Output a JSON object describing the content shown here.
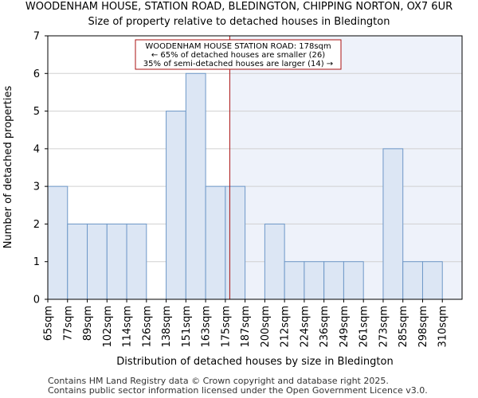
{
  "chart_data": {
    "type": "bar",
    "title": "WOODENHAM HOUSE, STATION ROAD, BLEDINGTON, CHIPPING NORTON, OX7 6UR",
    "subtitle": "Size of property relative to detached houses in Bledington",
    "xlabel": "Distribution of detached houses by size in Bledington",
    "ylabel": "Number of detached properties",
    "categories": [
      "65sqm",
      "77sqm",
      "89sqm",
      "102sqm",
      "114sqm",
      "126sqm",
      "138sqm",
      "151sqm",
      "163sqm",
      "175sqm",
      "187sqm",
      "200sqm",
      "212sqm",
      "224sqm",
      "236sqm",
      "249sqm",
      "261sqm",
      "273sqm",
      "285sqm",
      "298sqm",
      "310sqm"
    ],
    "values": [
      3,
      2,
      2,
      2,
      2,
      0,
      5,
      6,
      3,
      3,
      0,
      2,
      1,
      1,
      1,
      1,
      0,
      4,
      1,
      1,
      0
    ],
    "ylim": [
      0,
      7
    ],
    "yticks": [
      0,
      1,
      2,
      3,
      4,
      5,
      6,
      7
    ],
    "marker_value": 178,
    "marker_unit": "sqm",
    "annotation_lines": [
      "WOODENHAM HOUSE STATION ROAD: 178sqm",
      "← 65% of detached houses are smaller (26)",
      "35% of semi-detached houses are larger (14) →"
    ],
    "colors": {
      "bar_fill": "#dce6f4",
      "bar_stroke": "#6e98c8",
      "marker": "#aa1111",
      "shade": "#eef2fa",
      "grid": "#d0d0d0"
    },
    "grid": true
  },
  "footer": {
    "line1": "Contains HM Land Registry data © Crown copyright and database right 2025.",
    "line2": "Contains public sector information licensed under the Open Government Licence v3.0."
  }
}
